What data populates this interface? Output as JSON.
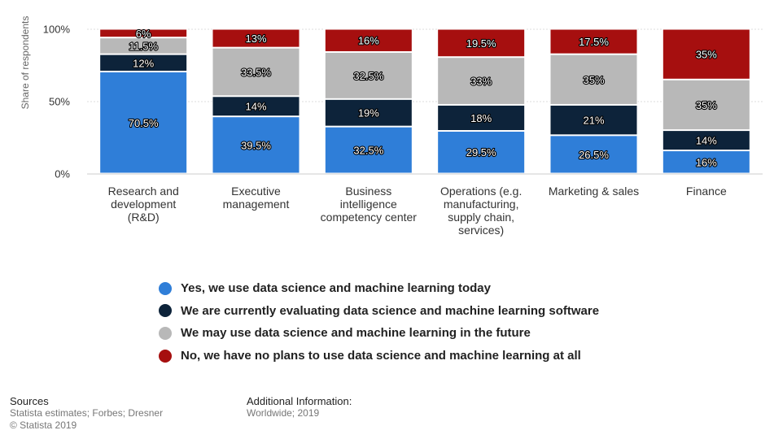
{
  "chart_data": {
    "type": "bar",
    "stacked": true,
    "ylabel": "Share of respondents",
    "ylim": [
      0,
      100
    ],
    "yticks": [
      "0%",
      "50%",
      "100%"
    ],
    "grid": true,
    "categories": [
      [
        "Research and",
        "development",
        "(R&D)"
      ],
      [
        "Executive",
        "management"
      ],
      [
        "Business",
        "intelligence",
        "competency center"
      ],
      [
        "Operations (e.g.",
        "manufacturing,",
        "supply chain,",
        "services)"
      ],
      [
        "Marketing & sales"
      ],
      [
        "Finance"
      ]
    ],
    "series": [
      {
        "name": "Yes, we use data science and machine learning today",
        "color": "#2f7ed8",
        "values": [
          70.5,
          39.5,
          32.5,
          29.5,
          26.5,
          16
        ],
        "labels": [
          "70.5%",
          "39.5%",
          "32.5%",
          "29.5%",
          "26.5%",
          "16%"
        ]
      },
      {
        "name": "We are currently evaluating data science and machine learning software",
        "color": "#0d233a",
        "values": [
          12,
          14,
          19,
          18,
          21,
          14
        ],
        "labels": [
          "12%",
          "14%",
          "19%",
          "18%",
          "21%",
          "14%"
        ]
      },
      {
        "name": "We may use data science and machine learning in the future",
        "color": "#b8b8b8",
        "values": [
          11.5,
          33.5,
          32.5,
          33,
          35,
          35
        ],
        "labels": [
          "11.5%",
          "33.5%",
          "32.5%",
          "33%",
          "35%",
          "35%"
        ]
      },
      {
        "name": "No, we have no plans to use data science and machine learning at all",
        "color": "#a60f0f",
        "values": [
          6,
          13,
          16,
          19.5,
          17.5,
          35
        ],
        "labels": [
          "6%",
          "13%",
          "16%",
          "19.5%",
          "17.5%",
          "35%"
        ]
      }
    ],
    "legend_position": "bottom"
  },
  "footer": {
    "sources_heading": "Sources",
    "sources_text": "Statista estimates; Forbes; Dresner",
    "copyright": "© Statista 2019",
    "additional_heading": "Additional Information:",
    "additional_text": "Worldwide; 2019"
  }
}
